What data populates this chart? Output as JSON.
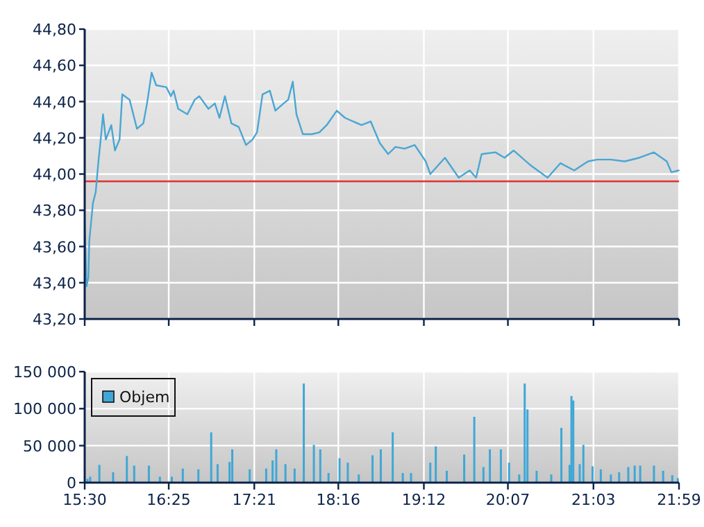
{
  "chart_data": [
    {
      "type": "line",
      "xlim": [
        15.5,
        21.9833
      ],
      "xticks": [
        {
          "value": 15.5,
          "label": null
        },
        {
          "value": 16.4167,
          "label": null
        },
        {
          "value": 17.35,
          "label": null
        },
        {
          "value": 18.2667,
          "label": null
        },
        {
          "value": 19.2,
          "label": null
        },
        {
          "value": 20.1167,
          "label": null
        },
        {
          "value": 21.05,
          "label": null
        },
        {
          "value": 21.9833,
          "label": null
        }
      ],
      "ylim": [
        43.2,
        44.8
      ],
      "yticks": [
        {
          "value": 43.2,
          "label": "43,20"
        },
        {
          "value": 43.4,
          "label": "43,40"
        },
        {
          "value": 43.6,
          "label": "43,60"
        },
        {
          "value": 43.8,
          "label": "43,80"
        },
        {
          "value": 44.0,
          "label": "44,00"
        },
        {
          "value": 44.2,
          "label": "44,20"
        },
        {
          "value": 44.4,
          "label": "44,40"
        },
        {
          "value": 44.6,
          "label": "44,60"
        },
        {
          "value": 44.8,
          "label": "44,80"
        }
      ],
      "tick_labels": "y",
      "grid": true,
      "legend": false,
      "marker": "none",
      "line_style": "solid",
      "ref_lines": [
        {
          "axis": "y",
          "value": 43.96,
          "color": "#e03030"
        }
      ],
      "series": [
        {
          "color": "#4aa6d2",
          "x": [
            15.5,
            15.52,
            15.54,
            15.55,
            15.59,
            15.62,
            15.65,
            15.68,
            15.7,
            15.73,
            15.79,
            15.83,
            15.88,
            15.91,
            15.99,
            16.07,
            16.14,
            16.18,
            16.23,
            16.28,
            16.39,
            16.44,
            16.47,
            16.52,
            16.62,
            16.7,
            16.75,
            16.85,
            16.92,
            16.97,
            17.03,
            17.1,
            17.18,
            17.26,
            17.33,
            17.38,
            17.44,
            17.52,
            17.58,
            17.67,
            17.72,
            17.77,
            17.81,
            17.88,
            17.98,
            18.06,
            18.14,
            18.25,
            18.34,
            18.52,
            18.62,
            18.72,
            18.81,
            18.89,
            18.99,
            19.1,
            19.22,
            19.27,
            19.43,
            19.58,
            19.7,
            19.77,
            19.83,
            19.98,
            20.08,
            20.18,
            20.36,
            20.55,
            20.69,
            20.84,
            20.99,
            21.09,
            21.24,
            21.39,
            21.55,
            21.71,
            21.85,
            21.9,
            21.98
          ],
          "values": [
            43.74,
            43.38,
            43.43,
            43.63,
            43.84,
            43.9,
            44.07,
            44.22,
            44.33,
            44.19,
            44.27,
            44.13,
            44.19,
            44.44,
            44.41,
            44.25,
            44.28,
            44.39,
            44.56,
            44.49,
            44.48,
            44.43,
            44.46,
            44.36,
            44.33,
            44.41,
            44.43,
            44.36,
            44.39,
            44.31,
            44.43,
            44.28,
            44.26,
            44.16,
            44.19,
            44.23,
            44.44,
            44.46,
            44.35,
            44.39,
            44.41,
            44.51,
            44.33,
            44.22,
            44.22,
            44.23,
            44.27,
            44.35,
            44.31,
            44.27,
            44.29,
            44.17,
            44.11,
            44.15,
            44.14,
            44.16,
            44.07,
            44.0,
            44.09,
            43.98,
            44.02,
            43.98,
            44.11,
            44.12,
            44.09,
            44.13,
            44.05,
            43.98,
            44.06,
            44.02,
            44.07,
            44.08,
            44.08,
            44.07,
            44.09,
            44.12,
            44.07,
            44.01,
            44.02
          ]
        }
      ]
    },
    {
      "type": "bar",
      "xlim": [
        15.5,
        21.9833
      ],
      "xticks": [
        {
          "value": 15.5,
          "label": "15:30"
        },
        {
          "value": 16.4167,
          "label": "16:25"
        },
        {
          "value": 17.35,
          "label": "17:21"
        },
        {
          "value": 18.2667,
          "label": "18:16"
        },
        {
          "value": 19.2,
          "label": "19:12"
        },
        {
          "value": 20.1167,
          "label": "20:07"
        },
        {
          "value": 21.05,
          "label": "21:03"
        },
        {
          "value": 21.9833,
          "label": "21:59"
        }
      ],
      "ylim": [
        0,
        150000
      ],
      "yticks": [
        0,
        {
          "value": 50000,
          "label": "50 000"
        },
        {
          "value": 100000,
          "label": "100 000"
        },
        {
          "value": 150000,
          "label": "150 000"
        }
      ],
      "grid": true,
      "legend": "top left",
      "series": [
        {
          "name": "Objem",
          "color": "#3fa7d6",
          "x": [
            15.53,
            15.56,
            15.66,
            15.81,
            15.96,
            16.04,
            16.2,
            16.32,
            16.45,
            16.57,
            16.74,
            16.88,
            16.95,
            17.08,
            17.11,
            17.3,
            17.48,
            17.55,
            17.59,
            17.69,
            17.79,
            17.89,
            18.0,
            18.07,
            18.16,
            18.28,
            18.37,
            18.49,
            18.64,
            18.73,
            18.86,
            18.97,
            19.06,
            19.27,
            19.33,
            19.45,
            19.64,
            19.75,
            19.85,
            19.92,
            20.04,
            20.13,
            20.24,
            20.3,
            20.33,
            20.43,
            20.59,
            20.7,
            20.79,
            20.81,
            20.83,
            20.9,
            20.94,
            21.04,
            21.13,
            21.24,
            21.33,
            21.43,
            21.5,
            21.56,
            21.71,
            21.81,
            21.91,
            21.97
          ],
          "values": [
            5000,
            8000,
            24000,
            14000,
            36000,
            23000,
            23000,
            8000,
            8000,
            19000,
            18000,
            68000,
            25000,
            28000,
            45000,
            18000,
            19000,
            30000,
            45000,
            25000,
            19000,
            134000,
            51000,
            45000,
            13000,
            33000,
            27000,
            11000,
            37000,
            45000,
            68000,
            13000,
            13000,
            27000,
            49000,
            16000,
            38000,
            89000,
            21000,
            45000,
            45000,
            27000,
            11000,
            134000,
            99000,
            16000,
            11000,
            74000,
            24000,
            117000,
            111000,
            25000,
            51000,
            22000,
            18000,
            11000,
            14000,
            21000,
            23000,
            23000,
            23000,
            16000,
            10000,
            6000
          ]
        }
      ]
    }
  ]
}
